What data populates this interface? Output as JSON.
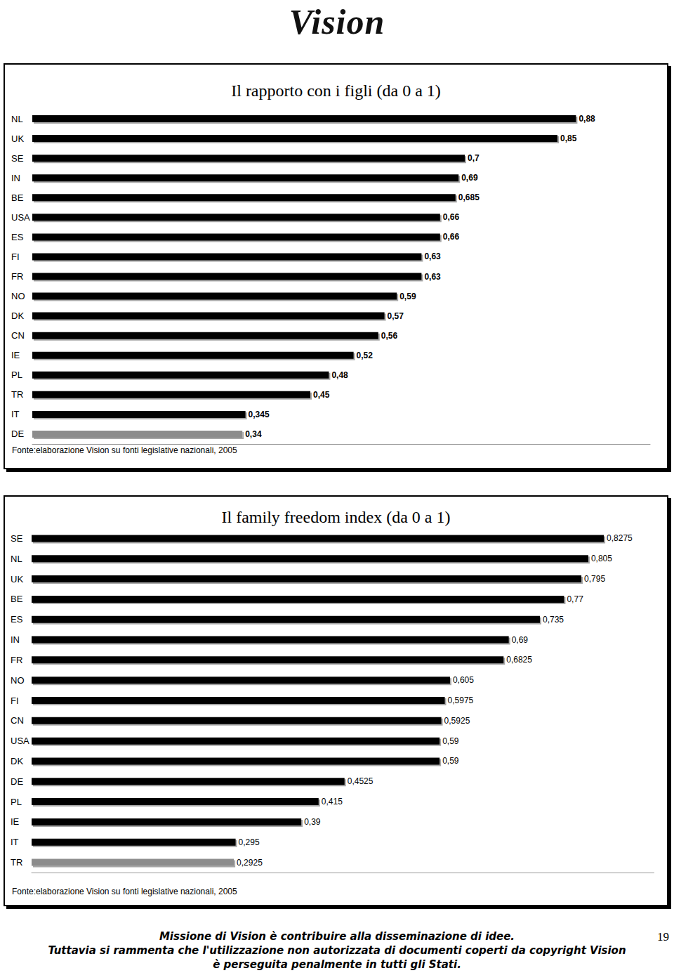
{
  "logo": "Vision",
  "chart_data": [
    {
      "type": "bar",
      "orientation": "horizontal",
      "title": "Il rapporto con i figli (da 0 a 1)",
      "annotation": "Fonte:elaborazione Vision su fonti legislative nazionali, 2005",
      "categories": [
        "NL",
        "UK",
        "SE",
        "IN",
        "BE",
        "USA",
        "ES",
        "FI",
        "FR",
        "NO",
        "DK",
        "CN",
        "IE",
        "PL",
        "TR",
        "IT",
        "DE"
      ],
      "values": [
        0.88,
        0.85,
        0.7,
        0.69,
        0.685,
        0.66,
        0.66,
        0.63,
        0.63,
        0.59,
        0.57,
        0.56,
        0.52,
        0.48,
        0.45,
        0.345,
        0.34
      ],
      "value_labels": [
        "0,88",
        "0,85",
        "0,7",
        "0,69",
        "0,685",
        "0,66",
        "0,66",
        "0,63",
        "0,63",
        "0,59",
        "0,57",
        "0,56",
        "0,52",
        "0,48",
        "0,45",
        "0,345",
        "0,34"
      ],
      "colors": [
        "#000000",
        "#000000",
        "#000000",
        "#000000",
        "#000000",
        "#000000",
        "#000000",
        "#000000",
        "#000000",
        "#000000",
        "#000000",
        "#000000",
        "#000000",
        "#000000",
        "#000000",
        "#000000",
        "#8c8c8c"
      ],
      "xlim": [
        0,
        1
      ],
      "data_labels": true,
      "tick_labels": "y",
      "grid": false
    },
    {
      "type": "bar",
      "orientation": "horizontal",
      "title": "Il family freedom index (da 0 a 1)",
      "annotation": "Fonte:elaborazione Vision su fonti legislative nazionali, 2005",
      "categories": [
        "SE",
        "NL",
        "UK",
        "BE",
        "ES",
        "IN",
        "FR",
        "NO",
        "FI",
        "CN",
        "USA",
        "DK",
        "DE",
        "PL",
        "IE",
        "IT",
        "TR"
      ],
      "values": [
        0.8275,
        0.805,
        0.795,
        0.77,
        0.735,
        0.69,
        0.6825,
        0.605,
        0.5975,
        0.5925,
        0.59,
        0.59,
        0.4525,
        0.415,
        0.39,
        0.295,
        0.2925
      ],
      "value_labels": [
        "0,8275",
        "0,805",
        "0,795",
        "0,77",
        "0,735",
        "0,69",
        "0,6825",
        "0,605",
        "0,5975",
        "0,5925",
        "0,59",
        "0,59",
        "0,4525",
        "0,415",
        "0,39",
        "0,295",
        "0,2925"
      ],
      "colors": [
        "#000000",
        "#000000",
        "#000000",
        "#000000",
        "#000000",
        "#000000",
        "#000000",
        "#000000",
        "#000000",
        "#000000",
        "#000000",
        "#000000",
        "#000000",
        "#000000",
        "#000000",
        "#000000",
        "#8c8c8c"
      ],
      "xlim": [
        0,
        0.9
      ],
      "data_labels": true,
      "tick_labels": "y",
      "grid": false
    }
  ],
  "footer": [
    "Missione di Vision è contribuire alla disseminazione di idee.",
    "Tuttavia si rammenta che l'utilizzazione non autorizzata di documenti coperti da copyright Vision",
    "è perseguita penalmente in tutti gli Stati."
  ],
  "page_number": 19
}
